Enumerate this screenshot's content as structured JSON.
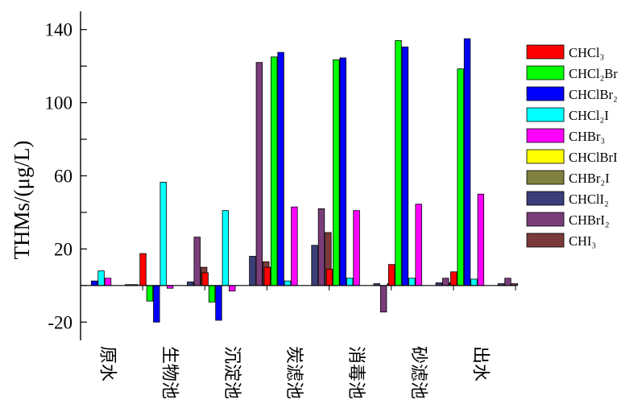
{
  "chart_data": {
    "type": "bar",
    "title": "",
    "xlabel": "",
    "ylabel": "THMs/(μg/L)",
    "ylim": [
      -30,
      150
    ],
    "yticks": [
      -20,
      20,
      60,
      100,
      140
    ],
    "legend_position": "right",
    "categories": [
      "原水",
      "生物池",
      "沉淀池",
      "炭滤池",
      "消毒池",
      "砂滤池",
      "出水"
    ],
    "series": [
      {
        "name": "CHCl₃",
        "color": "#ff0000",
        "values": [
          0,
          17.5,
          7,
          10,
          9,
          11.5,
          7.5
        ]
      },
      {
        "name": "CHCl₂Br",
        "color": "#00ff00",
        "values": [
          0,
          -8.5,
          -9,
          125,
          123.5,
          134,
          118.5
        ]
      },
      {
        "name": "CHClBr₂",
        "color": "#0000ff",
        "values": [
          2.5,
          -20,
          -19,
          127.5,
          124.5,
          130.5,
          135
        ]
      },
      {
        "name": "CHCl₂I",
        "color": "#00ffff",
        "values": [
          8,
          56.5,
          41,
          2.5,
          4,
          4,
          3.5
        ]
      },
      {
        "name": "CHBr₃",
        "color": "#ff00ff",
        "values": [
          4,
          -1.5,
          -3,
          43,
          41,
          44.5,
          50
        ]
      },
      {
        "name": "CHClBrI",
        "color": "#ffff00",
        "values": [
          0,
          0,
          0,
          0,
          0,
          0,
          0
        ]
      },
      {
        "name": "CHBr₂I",
        "color": "#808040",
        "values": [
          0,
          0,
          0,
          0,
          0,
          0,
          0
        ]
      },
      {
        "name": "CHClI₂",
        "color": "#3a3f7a",
        "values": [
          0.5,
          2,
          16,
          22,
          1,
          1.5,
          1
        ]
      },
      {
        "name": "CHBrI₂",
        "color": "#7a3d7a",
        "values": [
          0.5,
          26.5,
          122,
          42,
          -14.5,
          4,
          4
        ]
      },
      {
        "name": "CHI₃",
        "color": "#7a3a3a",
        "values": [
          0,
          10,
          13,
          29,
          1,
          1.5,
          1
        ]
      }
    ]
  }
}
